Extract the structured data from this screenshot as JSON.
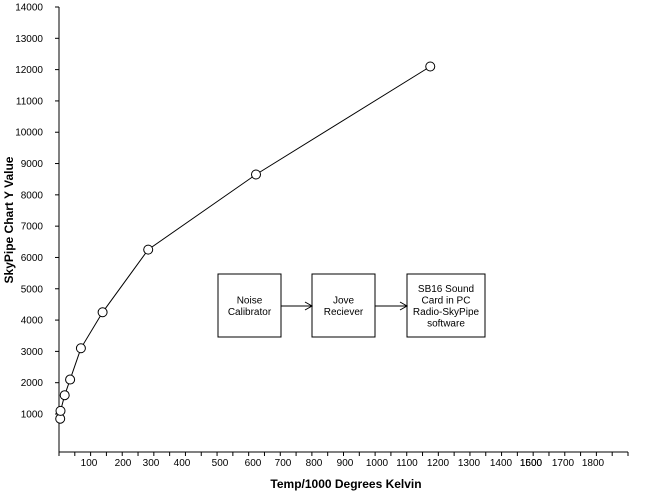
{
  "chart_data": {
    "type": "line",
    "xlabel": "Temp/1000  Degrees Kelvin",
    "ylabel": "SkyPipe Chart Y Value",
    "y_ticks": [
      1000,
      2000,
      3000,
      4000,
      5000,
      6000,
      7000,
      8000,
      9000,
      10000,
      11000,
      12000,
      13000,
      14000
    ],
    "x_tick_labels": [
      "100",
      "200",
      "300",
      "400",
      "500",
      "600",
      "700",
      "800",
      "900",
      "1000",
      "1100",
      "1200",
      "1300",
      "1400",
      "1500",
      "1600",
      "1700",
      "1800"
    ],
    "series": [
      {
        "marker": "open-circle",
        "points": [
          {
            "x": 4,
            "y": 850
          },
          {
            "x": 5,
            "y": 1100
          },
          {
            "x": 19,
            "y": 1600
          },
          {
            "x": 37,
            "y": 2100
          },
          {
            "x": 73,
            "y": 3100
          },
          {
            "x": 140,
            "y": 4250
          },
          {
            "x": 290,
            "y": 6250
          },
          {
            "x": 610,
            "y": 8650
          },
          {
            "x": 1175,
            "y": 12100
          }
        ]
      }
    ],
    "annotations": {
      "boxes": [
        {
          "lines": [
            "Noise",
            "Calibrator"
          ]
        },
        {
          "lines": [
            "Jove",
            "Reciever"
          ]
        },
        {
          "lines": [
            "SB16 Sound",
            "Card in PC",
            "Radio-SkyPipe",
            "software"
          ]
        }
      ]
    }
  }
}
